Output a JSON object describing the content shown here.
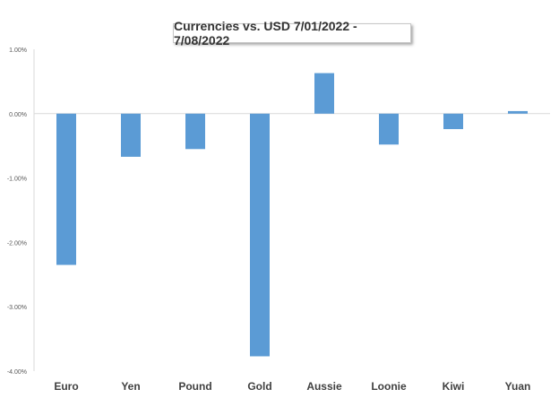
{
  "chart_data": {
    "type": "bar",
    "title": "Currencies vs. USD 7/01/2022 - 7/08/2022",
    "xlabel": "",
    "ylabel": "",
    "categories": [
      "Euro",
      "Yen",
      "Pound",
      "Gold",
      "Aussie",
      "Loonie",
      "Kiwi",
      "Yuan"
    ],
    "values": [
      -2.35,
      -0.67,
      -0.55,
      -3.77,
      0.63,
      -0.48,
      -0.24,
      0.04
    ],
    "ylim": [
      -4,
      1
    ],
    "yticks": [
      1,
      0,
      -1,
      -2,
      -3,
      -4
    ],
    "ytick_labels": [
      "1.00%",
      "0.00%",
      "-1.00%",
      "-2.00%",
      "-3.00%",
      "-4.00%"
    ],
    "bar_color": "#5b9bd5",
    "grid": false,
    "legend": "none"
  }
}
